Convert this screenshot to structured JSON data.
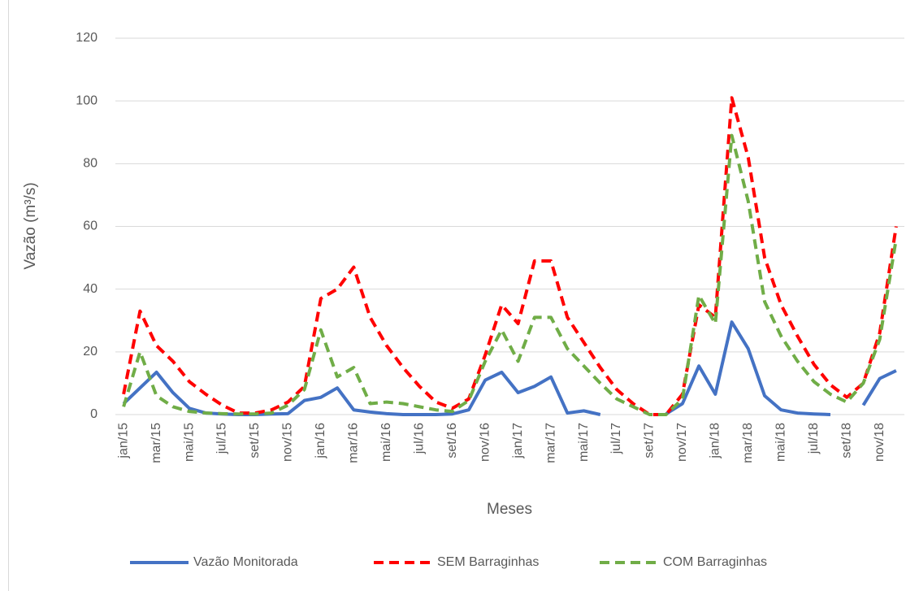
{
  "chart_data": {
    "type": "line",
    "ylabel": "Vazão (m³/s)",
    "xlabel": "Meses",
    "categories": [
      "jan/15",
      null,
      "mar/15",
      null,
      "mai/15",
      null,
      "jul/15",
      null,
      "set/15",
      null,
      "nov/15",
      null,
      "jan/16",
      null,
      "mar/16",
      null,
      "mai/16",
      null,
      "jul/16",
      null,
      "set/16",
      null,
      "nov/16",
      null,
      "jan/17",
      null,
      "mar/17",
      null,
      "mai/17",
      null,
      "jul/17",
      null,
      "set/17",
      null,
      "nov/17",
      null,
      "jan/18",
      null,
      "mar/18",
      null,
      "mai/18",
      null,
      "jul/18",
      null,
      "set/18",
      null,
      "nov/18",
      null
    ],
    "series": [
      {
        "name": "Vazão Monitorada",
        "color": "#4472c4",
        "dashed": false,
        "values": [
          3.5,
          8.5,
          13.5,
          7,
          2,
          0.5,
          0.2,
          0,
          0,
          0.2,
          0.3,
          4.5,
          5.5,
          8.5,
          1.5,
          0.8,
          0.3,
          0,
          0,
          0,
          0.2,
          1.5,
          11,
          13.5,
          7,
          9,
          12,
          0.5,
          1.2,
          0,
          null,
          null,
          null,
          0.2,
          3.5,
          15.5,
          6.5,
          29.5,
          21,
          6,
          1.5,
          0.5,
          0.2,
          0,
          null,
          3,
          11.5,
          14
        ]
      },
      {
        "name": "SEM Barraginhas",
        "color": "#ff0000",
        "dashed": true,
        "values": [
          6.5,
          33,
          22,
          17,
          10.5,
          6.5,
          3,
          0.5,
          0.5,
          1.5,
          4,
          9,
          37,
          40,
          47,
          31,
          22,
          15,
          9,
          4,
          2,
          5,
          19,
          35,
          29,
          49,
          49,
          31,
          23,
          15,
          8,
          3.5,
          0,
          0,
          6.5,
          35,
          31,
          101,
          82,
          50,
          35,
          25,
          16,
          9.5,
          5.5,
          10,
          26,
          60
        ]
      },
      {
        "name": "COM Barraginhas",
        "color": "#70ad47",
        "dashed": true,
        "values": [
          2.5,
          20,
          6,
          2.5,
          1,
          0.5,
          0.3,
          0.2,
          0.2,
          0.5,
          3,
          8,
          27,
          12,
          15,
          3.5,
          4,
          3.5,
          2.5,
          1.5,
          1,
          4.5,
          17,
          27,
          17,
          31,
          31,
          21,
          15.5,
          10,
          5,
          2.5,
          0,
          0,
          5,
          38,
          29,
          89,
          68,
          36,
          25,
          17,
          10.5,
          6.5,
          4,
          10,
          24,
          56
        ]
      }
    ],
    "ylim": [
      0,
      120
    ],
    "yticks": [
      0,
      20,
      40,
      60,
      80,
      100,
      120
    ],
    "grid": true,
    "legend": "bottom"
  }
}
